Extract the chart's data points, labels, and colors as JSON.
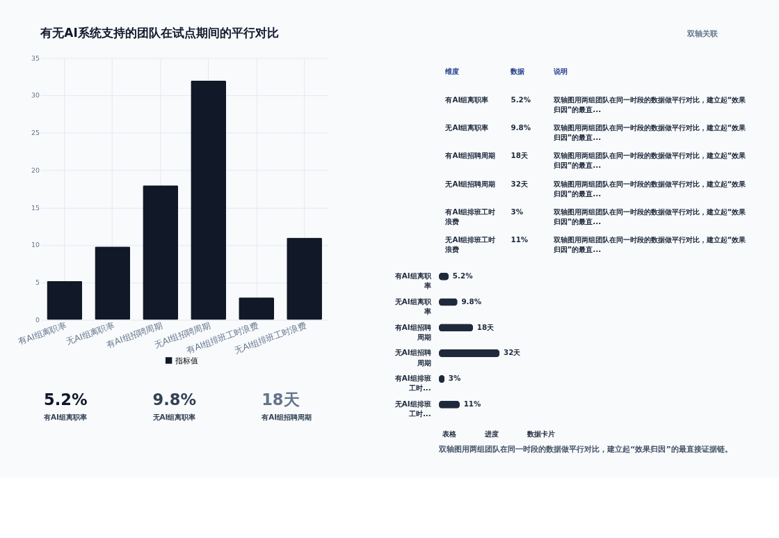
{
  "chart_data": [
    {
      "type": "bar",
      "title": "有无AI系统支持的团队在试点期间的平行对比",
      "annotations": [
        "双轴关联"
      ],
      "categories": [
        "有AI组离职率",
        "无AI组离职率",
        "有AI组招聘周期",
        "无AI组招聘周期",
        "有AI组排班工时浪费",
        "无AI组排班工时浪费"
      ],
      "series": [
        {
          "name": "指标值",
          "color": "#111827",
          "values": [
            5.2,
            9.8,
            18,
            32,
            3,
            11
          ]
        }
      ],
      "ylim": [
        0,
        35
      ],
      "yticks": [
        0,
        5,
        10,
        15,
        20,
        25,
        30,
        35
      ],
      "grid": true,
      "legend": "bottom"
    },
    {
      "type": "other",
      "annotations": [
        "维度",
        "数据",
        "说明",
        "有AI组离职率",
        "5.2%",
        "双轴图用两组团队在同一时段的数据做平行对比，建立起“效果归因”的最直...",
        "无AI组离职率",
        "9.8%",
        "双轴图用两组团队在同一时段的数据做平行对比，建立起“效果归因”的最直...",
        "有AI组招聘周期",
        "18天",
        "双轴图用两组团队在同一时段的数据做平行对比，建立起“效果归因”的最直...",
        "无AI组招聘周期",
        "32天",
        "双轴图用两组团队在同一时段的数据做平行对比，建立起“效果归因”的最直...",
        "有AI组排班工时浪费",
        "3%",
        "双轴图用两组团队在同一时段的数据做平行对比，建立起“效果归因”的最直...",
        "无AI组排班工时浪费",
        "11%",
        "双轴图用两组团队在同一时段的数据做平行对比，建立起“效果归因”的最直..."
      ]
    },
    {
      "type": "bar",
      "orientation": "horizontal",
      "categories": [
        "有AI组离职率",
        "无AI组离职率",
        "有AI组招聘周期",
        "无AI组招聘周期",
        "有AI组排班工时...",
        "无AI组排班工时..."
      ],
      "values": [
        5.2,
        9.8,
        18,
        32,
        3,
        11
      ],
      "value_labels": [
        "5.2%",
        "9.8%",
        "18天",
        "32天",
        "3%",
        "11%"
      ],
      "colors": [
        "#1e293b",
        "#1e293b",
        "#1e293b",
        "#1e293b",
        "#1e293b",
        "#1e293b"
      ]
    },
    {
      "type": "other",
      "annotations": [
        "5.2%",
        "有AI组离职率",
        "9.8%",
        "无AI组离职率",
        "18天",
        "有AI组招聘周期"
      ],
      "colors": [
        "#0f172a",
        "#334155",
        "#64748b"
      ]
    },
    {
      "type": "other",
      "annotations": [
        "表格",
        "进度",
        "数据卡片",
        "双轴图用两组团队在同一时段的数据做平行对比，建立起“效果归因”的最直接证据链。"
      ]
    }
  ]
}
